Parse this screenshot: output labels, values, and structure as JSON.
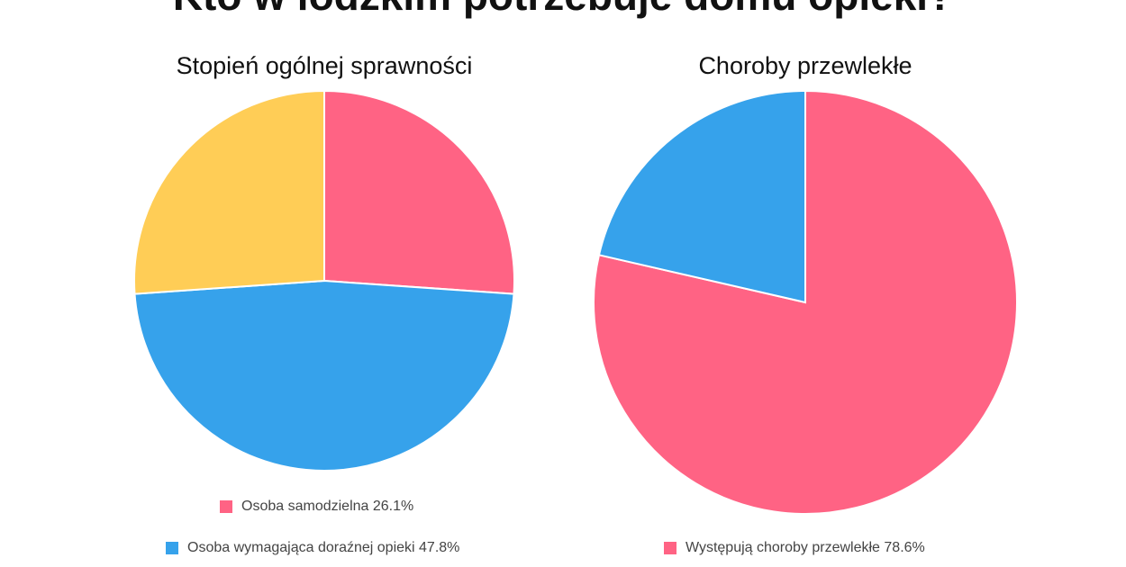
{
  "header": {
    "title": "Kto w łódzkim potrzebuje domu opieki?"
  },
  "colors": {
    "pink": "#FF6384",
    "blue": "#36A2EB",
    "yellow": "#FFCD56"
  },
  "chart_data": [
    {
      "type": "pie",
      "title": "Stopień ogólnej sprawności",
      "start_angle_deg": 0,
      "direction": "clockwise",
      "slices": [
        {
          "label": "Osoba samodzielna",
          "value": 26.1,
          "color": "#FF6384"
        },
        {
          "label": "Osoba wymagająca doraźnej opieki",
          "value": 47.8,
          "color": "#36A2EB"
        },
        {
          "label": "",
          "value": 26.1,
          "color": "#FFCD56"
        }
      ],
      "legend": [
        {
          "text": "Osoba samodzielna 26.1%",
          "color": "#FF6384"
        },
        {
          "text": "Osoba wymagająca doraźnej opieki 47.8%",
          "color": "#36A2EB"
        }
      ],
      "legend_position": "bottom"
    },
    {
      "type": "pie",
      "title": "Choroby przewlekłe",
      "start_angle_deg": 0,
      "direction": "clockwise",
      "slices": [
        {
          "label": "Występują choroby przewlekłe",
          "value": 78.6,
          "color": "#FF6384"
        },
        {
          "label": "",
          "value": 21.4,
          "color": "#36A2EB"
        }
      ],
      "legend": [
        {
          "text": "Występują choroby przewlekłe 78.6%",
          "color": "#FF6384"
        }
      ],
      "legend_position": "bottom"
    }
  ]
}
